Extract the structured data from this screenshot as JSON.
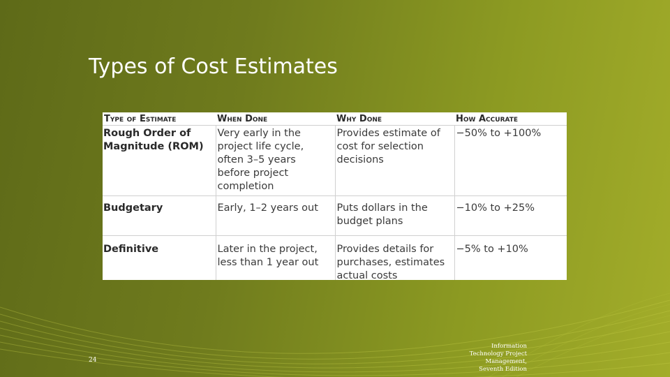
{
  "slide": {
    "title": "Types of Cost Estimates",
    "page_number": "24",
    "footer_lines": [
      "Information",
      "Technology Project",
      "Management,",
      "Seventh Edition"
    ]
  },
  "table": {
    "headers": [
      "Type of Estimate",
      "When Done",
      "Why Done",
      "How Accurate"
    ],
    "rows": [
      [
        "Rough Order of Magnitude (ROM)",
        "Very early in the project life cycle, often 3–5 years before project completion",
        "Provides estimate of cost for selection decisions",
        "−50% to +100%"
      ],
      [
        "Budgetary",
        "Early, 1–2 years out",
        "Puts dollars in the budget plans",
        "−10% to +25%"
      ],
      [
        "Definitive",
        "Later in the project, less than 1 year out",
        "Provides details for purchases, estimates actual costs",
        "−5% to +10%"
      ]
    ]
  }
}
